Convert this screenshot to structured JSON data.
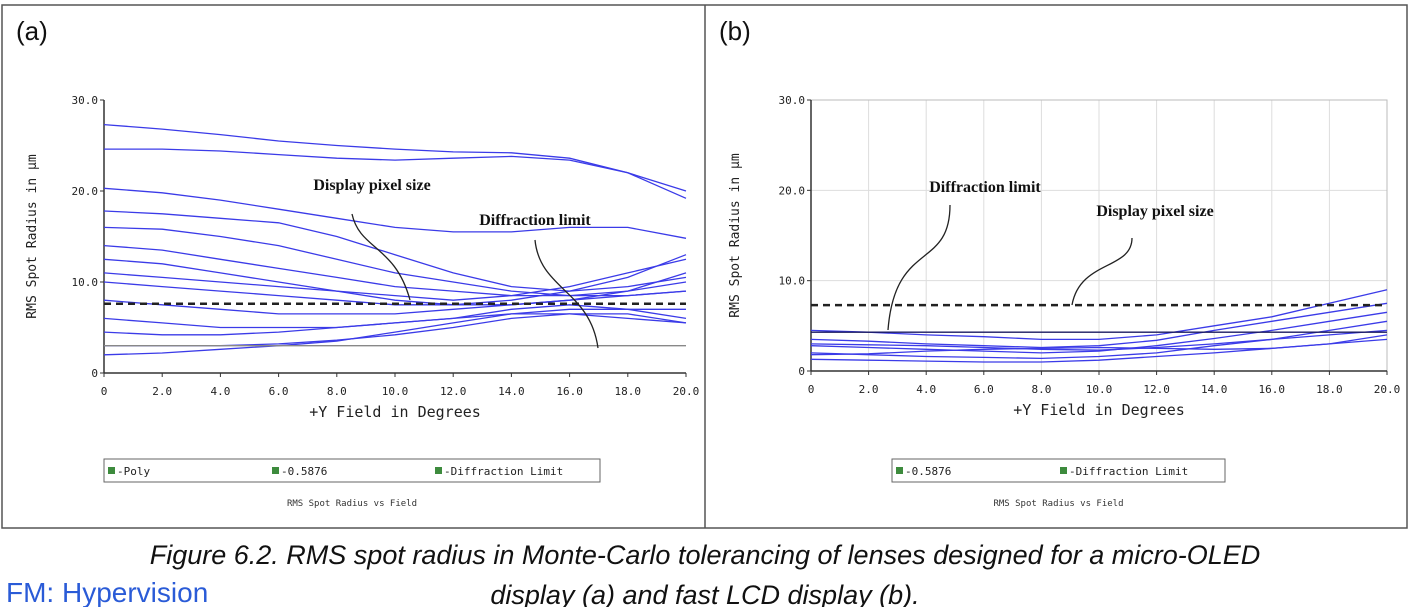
{
  "chart_data": [
    {
      "type": "line",
      "label": "(a)",
      "title": "RMS Spot Radius vs Field",
      "ylabel": "RMS Spot Radius in µm",
      "xlabel": "+Y Field in Degrees",
      "grid": false,
      "x": [
        0,
        2,
        4,
        6,
        8,
        10,
        12,
        14,
        16,
        18,
        20
      ],
      "xlim": [
        0,
        20
      ],
      "ylim": [
        0,
        30
      ],
      "xticks": [
        0,
        {
          "value": 2,
          "label": "2.0"
        },
        {
          "value": 4,
          "label": "4.0"
        },
        {
          "value": 6,
          "label": "6.0"
        },
        {
          "value": 8,
          "label": "8.0"
        },
        {
          "value": 10,
          "label": "10.0"
        },
        {
          "value": 12,
          "label": "12.0"
        },
        {
          "value": 14,
          "label": "14.0"
        },
        {
          "value": 16,
          "label": "16.0"
        },
        {
          "value": 18,
          "label": "18.0"
        },
        {
          "value": 20,
          "label": "20.0"
        }
      ],
      "yticks": [
        0,
        {
          "value": 10,
          "label": "10.0"
        },
        {
          "value": 20,
          "label": "20.0"
        },
        {
          "value": 30,
          "label": "30.0"
        }
      ],
      "legend": [
        {
          "label": "-Poly",
          "color": "#3d8b3d"
        },
        {
          "label": "-0.5876",
          "color": "#3d8b3d"
        },
        {
          "label": "-Diffraction Limit",
          "color": "#3d8b3d"
        }
      ],
      "annotations": [
        "Display pixel size",
        "Diffraction limit"
      ],
      "series": [
        {
          "color": "#3b3be8",
          "values": [
            27.3,
            26.8,
            26.2,
            25.5,
            25,
            24.6,
            24.3,
            24.2,
            23.6,
            22,
            19.2
          ]
        },
        {
          "color": "#3b3be8",
          "values": [
            24.6,
            24.6,
            24.4,
            24,
            23.6,
            23.4,
            23.6,
            23.8,
            23.4,
            22,
            20
          ]
        },
        {
          "color": "#3b3be8",
          "values": [
            20.3,
            19.8,
            19,
            18,
            17,
            16,
            15.5,
            15.5,
            16,
            16,
            14.8
          ]
        },
        {
          "color": "#3b3be8",
          "values": [
            17.8,
            17.5,
            17,
            16.5,
            15,
            13,
            11,
            9.5,
            9,
            9.5,
            10.5
          ]
        },
        {
          "color": "#3b3be8",
          "values": [
            16,
            15.8,
            15,
            14,
            12.5,
            11,
            10,
            9,
            8.5,
            8.5,
            9
          ]
        },
        {
          "color": "#3b3be8",
          "values": [
            14,
            13.5,
            12.5,
            11.5,
            10.5,
            9.5,
            9,
            8.5,
            8.5,
            9,
            10
          ]
        },
        {
          "color": "#3b3be8",
          "values": [
            12.5,
            12,
            11,
            10,
            9,
            8,
            7.5,
            7.5,
            8,
            9,
            11
          ]
        },
        {
          "color": "#3b3be8",
          "values": [
            10,
            9.5,
            9,
            8.5,
            8,
            7.5,
            7.5,
            8,
            9,
            10.5,
            13
          ]
        },
        {
          "color": "#3b3be8",
          "values": [
            8,
            7.5,
            7,
            6.5,
            6.5,
            6.5,
            7,
            7.5,
            8,
            8.5,
            9
          ]
        },
        {
          "color": "#3b3be8",
          "values": [
            6,
            5.5,
            5,
            5,
            5,
            5.5,
            6,
            7,
            7.5,
            7,
            6
          ]
        },
        {
          "color": "#3b3be8",
          "values": [
            4.5,
            4.2,
            4.2,
            4.5,
            5,
            5.5,
            6,
            6.5,
            6.5,
            6,
            5.5
          ]
        },
        {
          "color": "#3b3be8",
          "values": [
            3,
            3,
            3,
            3.2,
            3.6,
            4.2,
            5,
            6,
            6.5,
            6.5,
            5.5
          ]
        },
        {
          "color": "#3b3be8",
          "values": [
            2,
            2.2,
            2.6,
            3,
            3.5,
            4.5,
            5.5,
            6.5,
            7,
            7,
            7
          ]
        },
        {
          "color": "#3b3be8",
          "values": [
            11,
            10.5,
            10,
            9.5,
            9,
            8.5,
            8,
            8.5,
            9.5,
            11,
            12.5
          ]
        },
        {
          "color": "#222222",
          "dashed": true,
          "values": [
            7.6,
            7.6,
            7.6,
            7.6,
            7.6,
            7.6,
            7.6,
            7.6,
            7.6,
            7.6,
            7.6
          ]
        },
        {
          "color": "#888888",
          "values": [
            3,
            3,
            3,
            3,
            3,
            3,
            3,
            3,
            3,
            3,
            3
          ]
        }
      ]
    },
    {
      "type": "line",
      "label": "(b)",
      "title": "RMS Spot Radius vs Field",
      "ylabel": "RMS Spot Radius in µm",
      "xlabel": "+Y Field in Degrees",
      "grid": true,
      "x": [
        0,
        2,
        4,
        6,
        8,
        10,
        12,
        14,
        16,
        18,
        20
      ],
      "xlim": [
        0,
        20
      ],
      "ylim": [
        0,
        30
      ],
      "xticks": [
        0,
        {
          "value": 2,
          "label": "2.0"
        },
        {
          "value": 4,
          "label": "4.0"
        },
        {
          "value": 6,
          "label": "6.0"
        },
        {
          "value": 8,
          "label": "8.0"
        },
        {
          "value": 10,
          "label": "10.0"
        },
        {
          "value": 12,
          "label": "12.0"
        },
        {
          "value": 14,
          "label": "14.0"
        },
        {
          "value": 16,
          "label": "16.0"
        },
        {
          "value": 18,
          "label": "18.0"
        },
        {
          "value": 20,
          "label": "20.0"
        }
      ],
      "yticks": [
        0,
        {
          "value": 10,
          "label": "10.0"
        },
        {
          "value": 20,
          "label": "20.0"
        },
        {
          "value": 30,
          "label": "30.0"
        }
      ],
      "legend": [
        {
          "label": "-0.5876",
          "color": "#3d8b3d"
        },
        {
          "label": "-Diffraction Limit",
          "color": "#3d8b3d"
        }
      ],
      "annotations": [
        "Diffraction limit",
        "Display pixel size"
      ],
      "series": [
        {
          "color": "#3b3be8",
          "values": [
            4.5,
            4.3,
            4,
            3.8,
            3.5,
            3.5,
            4,
            5,
            6,
            7.5,
            9
          ]
        },
        {
          "color": "#3b3be8",
          "values": [
            3.5,
            3.3,
            3,
            2.8,
            2.6,
            2.8,
            3.4,
            4.5,
            5.5,
            6.5,
            7.5
          ]
        },
        {
          "color": "#3b3be8",
          "values": [
            2.8,
            2.6,
            2.4,
            2.2,
            2,
            2.2,
            2.8,
            3.6,
            4.5,
            5.5,
            6.5
          ]
        },
        {
          "color": "#3b3be8",
          "values": [
            2,
            1.8,
            1.6,
            1.5,
            1.4,
            1.6,
            2,
            2.8,
            3.5,
            4,
            4.5
          ]
        },
        {
          "color": "#3b3be8",
          "values": [
            1.3,
            1.2,
            1.1,
            1,
            1,
            1.2,
            1.6,
            2,
            2.5,
            3,
            3.5
          ]
        },
        {
          "color": "#3b3be8",
          "values": [
            3,
            2.9,
            2.8,
            2.6,
            2.4,
            2.3,
            2.6,
            3,
            3.5,
            4.5,
            5.5
          ]
        },
        {
          "color": "#3b3be8",
          "values": [
            1.8,
            1.9,
            2.2,
            2.4,
            2.5,
            2.6,
            2.5,
            2.4,
            2.5,
            3,
            4
          ]
        },
        {
          "color": "#222222",
          "dashed": true,
          "values": [
            7.3,
            7.3,
            7.3,
            7.3,
            7.3,
            7.3,
            7.3,
            7.3,
            7.3,
            7.3,
            7.3
          ]
        },
        {
          "color": "#1a1a60",
          "values": [
            4.3,
            4.3,
            4.3,
            4.3,
            4.3,
            4.3,
            4.3,
            4.3,
            4.3,
            4.3,
            4.3
          ]
        }
      ]
    }
  ],
  "caption": [
    "Figure 6.2. RMS spot radius in Monte-Carlo tolerancing of lenses designed for a micro-OLED",
    "display (a) and fast LCD display (b)."
  ],
  "credit": "FM: Hypervision"
}
